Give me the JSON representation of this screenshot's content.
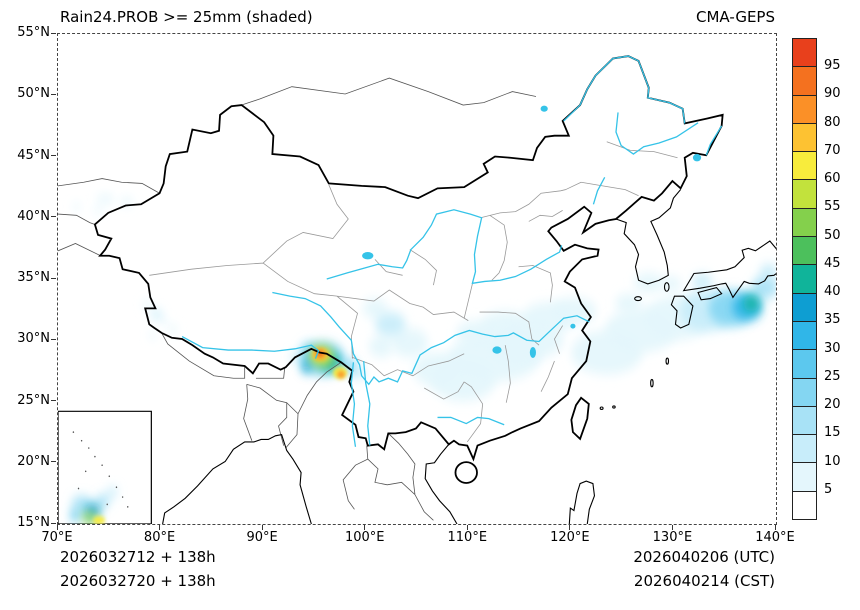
{
  "header": {
    "title": "Rain24.PROB >= 25mm (shaded)",
    "model": "CMA-GEPS"
  },
  "footer": {
    "init_utc": "2026032712 + 138h",
    "init_cst": "2026032720 + 138h",
    "valid_utc": "2026040206 (UTC)",
    "valid_cst": "2026040214 (CST)"
  },
  "axes": {
    "x_tick_labels": [
      "70°E",
      "80°E",
      "90°E",
      "100°E",
      "110°E",
      "120°E",
      "130°E",
      "140°E"
    ],
    "x_tick_values": [
      70,
      80,
      90,
      100,
      110,
      120,
      130,
      140
    ],
    "y_tick_labels": [
      "15°N",
      "20°N",
      "25°N",
      "30°N",
      "35°N",
      "40°N",
      "45°N",
      "50°N",
      "55°N"
    ],
    "y_tick_values": [
      15,
      20,
      25,
      30,
      35,
      40,
      45,
      50,
      55
    ],
    "x_range": [
      70,
      140
    ],
    "y_range": [
      15,
      55
    ]
  },
  "colorbar": {
    "labels_top_to_bottom": [
      "95",
      "90",
      "80",
      "70",
      "60",
      "55",
      "50",
      "45",
      "40",
      "35",
      "30",
      "25",
      "20",
      "15",
      "10",
      "5"
    ],
    "thresholds_ascending": [
      5,
      10,
      15,
      20,
      25,
      30,
      35,
      40,
      45,
      50,
      55,
      60,
      70,
      80,
      90,
      95
    ],
    "colors_bottom_to_top": [
      "#ffffff",
      "#e4f6fc",
      "#c8edfa",
      "#a8e2f6",
      "#84d6f2",
      "#5cc8ee",
      "#30b6e8",
      "#0e9ed2",
      "#10b49a",
      "#4cc05c",
      "#84d04c",
      "#c2e23c",
      "#f8ec3c",
      "#fdc232",
      "#fb9027",
      "#f4711f",
      "#e8401c"
    ]
  },
  "map_colors": {
    "border": "#000000",
    "province": "#999999",
    "foreign": "#555555",
    "coast": "#000000",
    "river": "#35c3e8",
    "frame": "#444444"
  },
  "chart_data": {
    "type": "heatmap",
    "title": "Rain24.PROB >= 25mm (shaded)",
    "model": "CMA-GEPS",
    "units": "percent probability of 24h rain >= 25mm",
    "x_range_deg_east": [
      70,
      140
    ],
    "y_range_deg_north": [
      15,
      55
    ],
    "legend_levels": [
      5,
      10,
      15,
      20,
      25,
      30,
      35,
      40,
      45,
      50,
      55,
      60,
      70,
      80,
      90,
      95
    ],
    "region_columns": [
      "lon_e",
      "lat_n",
      "rx_deg",
      "ry_deg",
      "prob_percent"
    ],
    "shaded_regions": [
      [
        74.6,
        41.5,
        0.9,
        0.35,
        8
      ],
      [
        76.7,
        41.3,
        0.7,
        0.3,
        8
      ],
      [
        73.9,
        40.6,
        0.5,
        0.25,
        6
      ],
      [
        71.8,
        40.9,
        0.45,
        0.25,
        6
      ],
      [
        78.7,
        32.9,
        0.5,
        0.3,
        8
      ],
      [
        79.6,
        32.1,
        0.6,
        0.35,
        10
      ],
      [
        80.3,
        31.6,
        0.45,
        0.25,
        6
      ],
      [
        81.2,
        30.9,
        0.5,
        0.3,
        8
      ],
      [
        79.2,
        30.4,
        0.4,
        0.25,
        8
      ],
      [
        93.2,
        28.6,
        0.6,
        0.4,
        10
      ],
      [
        94.4,
        29.3,
        0.8,
        0.5,
        15
      ],
      [
        95.8,
        28.5,
        2.1,
        1.3,
        25
      ],
      [
        95.7,
        28.7,
        1.25,
        0.85,
        55
      ],
      [
        95.6,
        28.85,
        0.8,
        0.55,
        70
      ],
      [
        95.55,
        28.9,
        0.45,
        0.3,
        92
      ],
      [
        96.6,
        28.1,
        0.9,
        0.6,
        40
      ],
      [
        97.5,
        27.35,
        0.7,
        0.5,
        60
      ],
      [
        97.6,
        27.2,
        0.38,
        0.28,
        80
      ],
      [
        94.2,
        27.8,
        0.5,
        0.4,
        35
      ],
      [
        98.4,
        27.9,
        0.8,
        0.55,
        20
      ],
      [
        99.3,
        27.3,
        0.7,
        0.45,
        10
      ],
      [
        100.9,
        32.6,
        1.2,
        0.8,
        8
      ],
      [
        102.4,
        31.3,
        1.5,
        1.0,
        10
      ],
      [
        104.3,
        29.8,
        1.8,
        1.2,
        8
      ],
      [
        101.5,
        29.5,
        1.2,
        0.9,
        6
      ],
      [
        107.0,
        27.6,
        2.4,
        1.4,
        6
      ],
      [
        109.5,
        26.8,
        3.2,
        1.8,
        6
      ],
      [
        112.5,
        28.6,
        4.5,
        2.0,
        7
      ],
      [
        114.6,
        29.3,
        2.6,
        1.3,
        9
      ],
      [
        115.8,
        30.0,
        3.5,
        1.6,
        7
      ],
      [
        113.6,
        31.2,
        2.4,
        1.2,
        6
      ],
      [
        110.8,
        30.6,
        2.0,
        1.0,
        8
      ],
      [
        117.8,
        31.8,
        2.6,
        1.3,
        6
      ],
      [
        120.3,
        32.4,
        2.2,
        1.1,
        6
      ],
      [
        123.5,
        29.0,
        3.5,
        1.8,
        6
      ],
      [
        126.8,
        30.8,
        3.5,
        1.8,
        7
      ],
      [
        130.3,
        31.8,
        3.2,
        1.8,
        9
      ],
      [
        133.2,
        32.4,
        2.6,
        1.7,
        14
      ],
      [
        135.6,
        32.6,
        2.2,
        1.5,
        22
      ],
      [
        137.2,
        32.7,
        1.5,
        1.1,
        32
      ],
      [
        137.6,
        33.0,
        0.8,
        0.6,
        42
      ],
      [
        138.9,
        34.3,
        1.3,
        0.9,
        16
      ],
      [
        139.3,
        35.6,
        0.9,
        0.6,
        10
      ],
      [
        127.6,
        34.7,
        1.5,
        0.8,
        8
      ],
      [
        125.6,
        33.0,
        1.3,
        0.8,
        7
      ],
      [
        129.8,
        34.6,
        1.0,
        0.6,
        8
      ],
      [
        132.8,
        34.8,
        1.0,
        0.6,
        10
      ]
    ],
    "inset_regions": [
      [
        72.3,
        16.6,
        1.0,
        0.7,
        18
      ],
      [
        73.4,
        16.1,
        0.8,
        0.55,
        35
      ],
      [
        73.1,
        15.5,
        0.8,
        0.45,
        50
      ],
      [
        74.4,
        16.9,
        0.7,
        0.5,
        15
      ],
      [
        71.7,
        15.7,
        0.6,
        0.4,
        25
      ],
      [
        75.3,
        17.6,
        0.55,
        0.4,
        10
      ],
      [
        74.0,
        15.3,
        0.6,
        0.35,
        60
      ]
    ],
    "notes": "Maximum probabilities (orange/red core >90%) over southeast Tibet near 95.5E 28.9N; secondary maximum near 97.6E 27.2N; broad weak (5-10%) shading over central-eastern China; moderate (20-45%) patch over western Pacific near 137E 33N."
  }
}
